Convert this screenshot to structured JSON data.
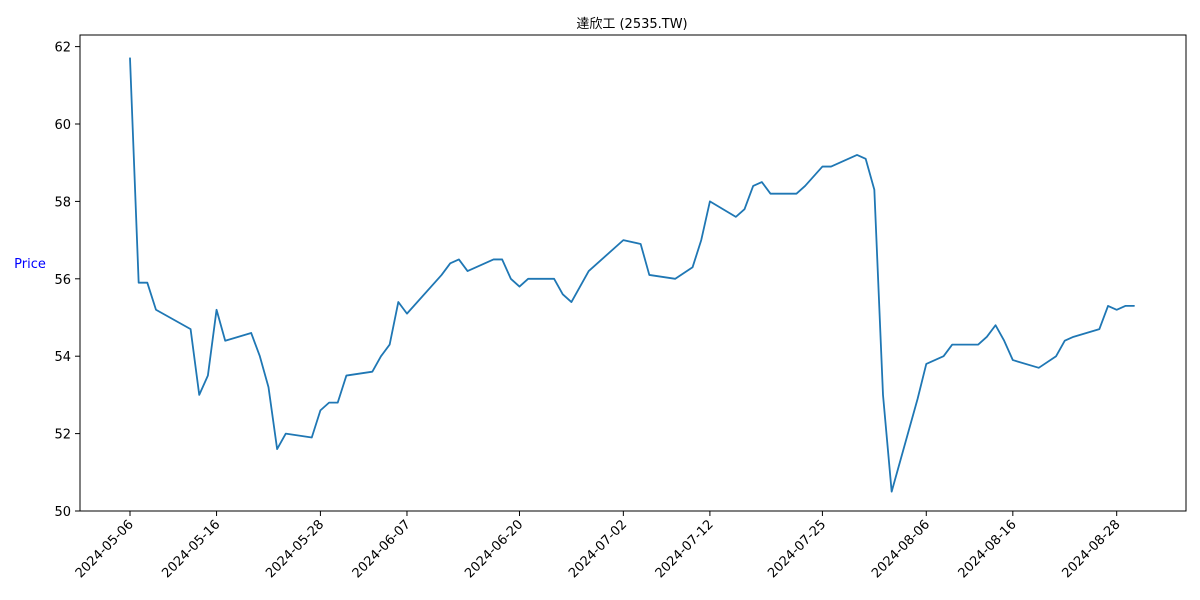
{
  "chart_data": {
    "type": "line",
    "title": "達欣工 (2535.TW)",
    "xlabel": "",
    "ylabel": "Price",
    "ylim": [
      50,
      62.3
    ],
    "yticks": [
      50,
      52,
      54,
      56,
      58,
      60,
      62
    ],
    "xticks": [
      "2024-05-06",
      "2024-05-16",
      "2024-05-28",
      "2024-06-07",
      "2024-06-20",
      "2024-07-02",
      "2024-07-12",
      "2024-07-25",
      "2024-08-06",
      "2024-08-16",
      "2024-08-28"
    ],
    "grid": false,
    "series": [
      {
        "name": "",
        "color": "#1f77b4",
        "x": [
          "2024-05-06",
          "2024-05-07",
          "2024-05-08",
          "2024-05-09",
          "2024-05-13",
          "2024-05-14",
          "2024-05-15",
          "2024-05-16",
          "2024-05-17",
          "2024-05-20",
          "2024-05-21",
          "2024-05-22",
          "2024-05-23",
          "2024-05-24",
          "2024-05-27",
          "2024-05-28",
          "2024-05-29",
          "2024-05-30",
          "2024-05-31",
          "2024-06-03",
          "2024-06-04",
          "2024-06-05",
          "2024-06-06",
          "2024-06-07",
          "2024-06-11",
          "2024-06-12",
          "2024-06-13",
          "2024-06-14",
          "2024-06-17",
          "2024-06-18",
          "2024-06-19",
          "2024-06-20",
          "2024-06-21",
          "2024-06-24",
          "2024-06-25",
          "2024-06-26",
          "2024-06-27",
          "2024-06-28",
          "2024-07-02",
          "2024-07-04",
          "2024-07-05",
          "2024-07-08",
          "2024-07-10",
          "2024-07-11",
          "2024-07-12",
          "2024-07-15",
          "2024-07-16",
          "2024-07-17",
          "2024-07-18",
          "2024-07-19",
          "2024-07-22",
          "2024-07-23",
          "2024-07-25",
          "2024-07-26",
          "2024-07-29",
          "2024-07-30",
          "2024-07-31",
          "2024-08-01",
          "2024-08-02",
          "2024-08-05",
          "2024-08-06",
          "2024-08-07",
          "2024-08-08",
          "2024-08-09",
          "2024-08-12",
          "2024-08-13",
          "2024-08-14",
          "2024-08-15",
          "2024-08-16",
          "2024-08-19",
          "2024-08-21",
          "2024-08-22",
          "2024-08-23",
          "2024-08-26",
          "2024-08-27",
          "2024-08-28",
          "2024-08-29",
          "2024-08-30"
        ],
        "values": [
          61.7,
          55.9,
          55.9,
          55.2,
          54.7,
          53.0,
          53.5,
          55.2,
          54.4,
          54.6,
          54.0,
          53.2,
          51.6,
          52.0,
          51.9,
          52.6,
          52.8,
          52.8,
          53.5,
          53.6,
          54.0,
          54.3,
          55.4,
          55.1,
          56.1,
          56.4,
          56.5,
          56.2,
          56.5,
          56.5,
          56.0,
          55.8,
          56.0,
          56.0,
          55.6,
          55.4,
          55.8,
          56.2,
          57.0,
          56.9,
          56.1,
          56.0,
          56.3,
          57.0,
          58.0,
          57.6,
          57.8,
          58.4,
          58.5,
          58.2,
          58.2,
          58.4,
          58.9,
          58.9,
          59.2,
          59.1,
          58.3,
          53.0,
          50.5,
          52.9,
          53.8,
          53.9,
          54.0,
          54.3,
          54.3,
          54.5,
          54.8,
          54.4,
          53.9,
          53.7,
          54.0,
          54.4,
          54.5,
          54.7,
          55.3,
          55.2,
          55.3,
          55.3
        ]
      }
    ]
  }
}
